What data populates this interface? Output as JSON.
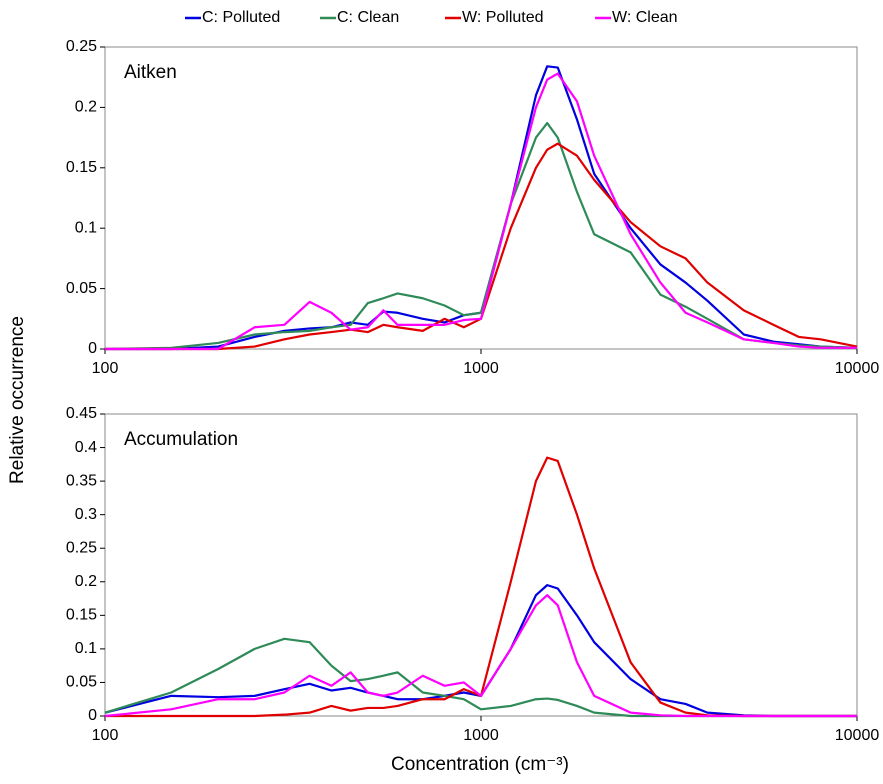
{
  "chart_data": [
    {
      "type": "line",
      "annotation": "Aitken",
      "ylabel": "Relative occurrence",
      "log_x": true,
      "x": [
        100,
        150,
        200,
        250,
        300,
        350,
        400,
        450,
        500,
        550,
        600,
        700,
        800,
        900,
        1000,
        1200,
        1400,
        1500,
        1600,
        1800,
        2000,
        2500,
        3000,
        3500,
        4000,
        5000,
        6000,
        7000,
        8000,
        10000
      ],
      "xlim": [
        100,
        10000
      ],
      "xticks": [
        100,
        1000,
        10000
      ],
      "ylim": [
        0,
        0.25
      ],
      "yticks": [
        0,
        0.05,
        0.1,
        0.15,
        0.2,
        0.25
      ],
      "series": [
        {
          "name": "C: Polluted",
          "color": "#0000e0",
          "values": [
            0,
            0,
            0.002,
            0.01,
            0.015,
            0.017,
            0.018,
            0.022,
            0.02,
            0.031,
            0.03,
            0.025,
            0.022,
            0.028,
            0.03,
            0.12,
            0.21,
            0.234,
            0.233,
            0.19,
            0.145,
            0.1,
            0.07,
            0.055,
            0.04,
            0.012,
            0.006,
            0.004,
            0.002,
            0.001
          ]
        },
        {
          "name": "C: Clean",
          "color": "#2e8b57",
          "values": [
            0,
            0.001,
            0.005,
            0.012,
            0.014,
            0.015,
            0.018,
            0.02,
            0.038,
            0.042,
            0.046,
            0.042,
            0.036,
            0.028,
            0.03,
            0.12,
            0.175,
            0.187,
            0.175,
            0.13,
            0.095,
            0.08,
            0.045,
            0.035,
            0.025,
            0.008,
            0.005,
            0.003,
            0.002,
            0.001
          ]
        },
        {
          "name": "W: Polluted",
          "color": "#e00000",
          "values": [
            0,
            0,
            0,
            0.002,
            0.008,
            0.012,
            0.014,
            0.016,
            0.014,
            0.02,
            0.018,
            0.015,
            0.025,
            0.018,
            0.025,
            0.1,
            0.15,
            0.165,
            0.17,
            0.16,
            0.14,
            0.105,
            0.085,
            0.075,
            0.055,
            0.032,
            0.02,
            0.01,
            0.008,
            0.002
          ]
        },
        {
          "name": "W: Clean",
          "color": "#ff00ff",
          "values": [
            0,
            0,
            0,
            0.018,
            0.02,
            0.039,
            0.03,
            0.016,
            0.018,
            0.032,
            0.02,
            0.02,
            0.02,
            0.024,
            0.025,
            0.12,
            0.2,
            0.223,
            0.228,
            0.205,
            0.16,
            0.095,
            0.055,
            0.03,
            0.022,
            0.008,
            0.005,
            0.002,
            0.001,
            0.001
          ]
        }
      ]
    },
    {
      "type": "line",
      "annotation": "Accumulation",
      "xlabel": "Concentration (cm⁻³)",
      "log_x": true,
      "x": [
        100,
        150,
        200,
        250,
        300,
        350,
        400,
        450,
        500,
        550,
        600,
        700,
        800,
        900,
        1000,
        1200,
        1400,
        1500,
        1600,
        1800,
        2000,
        2500,
        3000,
        3500,
        4000,
        5000,
        6000,
        7000,
        8000,
        10000
      ],
      "xlim": [
        100,
        10000
      ],
      "xticks": [
        100,
        1000,
        10000
      ],
      "ylim": [
        0,
        0.45
      ],
      "yticks": [
        0,
        0.05,
        0.1,
        0.15,
        0.2,
        0.25,
        0.3,
        0.35,
        0.4,
        0.45
      ],
      "series": [
        {
          "color": "#0000e0",
          "values": [
            0.005,
            0.03,
            0.028,
            0.03,
            0.04,
            0.048,
            0.038,
            0.042,
            0.035,
            0.03,
            0.025,
            0.025,
            0.03,
            0.035,
            0.03,
            0.1,
            0.18,
            0.195,
            0.19,
            0.15,
            0.11,
            0.055,
            0.025,
            0.018,
            0.005,
            0.001,
            0,
            0,
            0,
            0
          ]
        },
        {
          "color": "#2e8b57",
          "values": [
            0.005,
            0.035,
            0.07,
            0.1,
            0.115,
            0.11,
            0.075,
            0.052,
            0.055,
            0.06,
            0.065,
            0.035,
            0.03,
            0.025,
            0.01,
            0.015,
            0.025,
            0.026,
            0.024,
            0.015,
            0.005,
            0,
            0,
            0,
            0,
            0,
            0,
            0,
            0,
            0
          ]
        },
        {
          "color": "#e00000",
          "values": [
            0,
            0,
            0,
            0,
            0.002,
            0.005,
            0.015,
            0.008,
            0.012,
            0.012,
            0.015,
            0.025,
            0.025,
            0.04,
            0.03,
            0.2,
            0.35,
            0.385,
            0.38,
            0.3,
            0.22,
            0.08,
            0.02,
            0.005,
            0.001,
            0,
            0,
            0,
            0,
            0
          ]
        },
        {
          "color": "#ff00ff",
          "values": [
            0,
            0.01,
            0.025,
            0.025,
            0.035,
            0.06,
            0.045,
            0.065,
            0.035,
            0.03,
            0.035,
            0.06,
            0.045,
            0.05,
            0.03,
            0.1,
            0.165,
            0.18,
            0.165,
            0.08,
            0.03,
            0.005,
            0.001,
            0,
            0,
            0,
            0,
            0,
            0,
            0
          ]
        }
      ]
    }
  ]
}
